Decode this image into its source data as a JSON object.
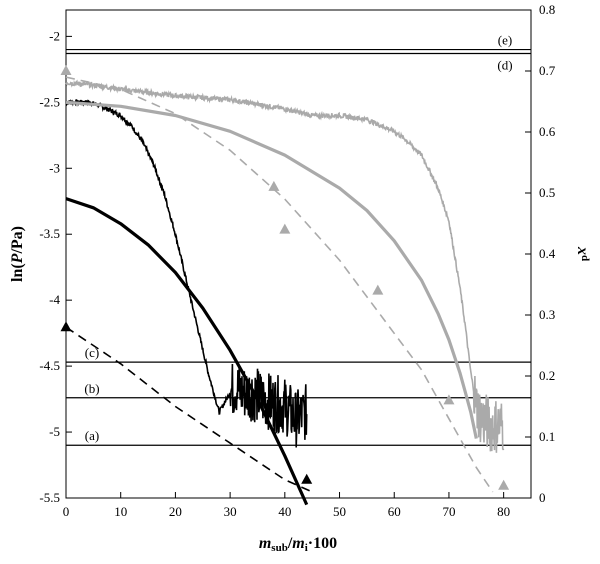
{
  "chart_data": {
    "type": "line",
    "x_axis": {
      "label_parts": [
        {
          "text": "m",
          "style": "italic"
        },
        {
          "text": "sub",
          "style": "subscript"
        },
        {
          "text": "/",
          "style": "normal"
        },
        {
          "text": "m",
          "style": "italic"
        },
        {
          "text": "i",
          "style": "subscript"
        },
        {
          "text": "·100",
          "style": "normal"
        }
      ],
      "range": [
        0,
        85
      ],
      "ticks": [
        0,
        10,
        20,
        30,
        40,
        50,
        60,
        70,
        80
      ],
      "tick_labels": [
        "0",
        "10",
        "20",
        "30",
        "40",
        "50",
        "60",
        "70",
        "80"
      ]
    },
    "y_left": {
      "label_parts": [
        {
          "text": "ln(",
          "style": "normal"
        },
        {
          "text": "P",
          "style": "italic"
        },
        {
          "text": "/Pa)",
          "style": "normal"
        }
      ],
      "range": [
        -5.5,
        -1.8
      ],
      "ticks": [
        -5.5,
        -5,
        -4.5,
        -4,
        -3.5,
        -3,
        -2.5,
        -2
      ],
      "tick_labels": [
        "-5.5",
        "-5",
        "-4.5",
        "-4",
        "-3.5",
        "-3",
        "-2.5",
        "-2"
      ]
    },
    "y_right": {
      "label_parts": [
        {
          "text": "x",
          "style": "italic"
        },
        {
          "text": "d",
          "style": "superscript"
        }
      ],
      "range": [
        0,
        0.8
      ],
      "ticks": [
        0,
        0.1,
        0.2,
        0.3,
        0.4,
        0.5,
        0.6,
        0.7,
        0.8
      ],
      "tick_labels": [
        "0",
        "0.1",
        "0.2",
        "0.3",
        "0.4",
        "0.5",
        "0.6",
        "0.7",
        "0.8"
      ]
    },
    "grid": false,
    "reference_lines": [
      {
        "label": "(a)",
        "y": -5.1
      },
      {
        "label": "(b)",
        "y": -4.74
      },
      {
        "label": "(c)",
        "y": -4.47
      },
      {
        "label": "(d)",
        "y": -2.13
      },
      {
        "label": "(e)",
        "y": -2.1
      }
    ],
    "series": [
      {
        "axis": "left",
        "style": "noisy-trace",
        "color": "#000000",
        "x": [
          0,
          2,
          4,
          6,
          8,
          10,
          12,
          14,
          16,
          18,
          20,
          22,
          24,
          26,
          28,
          30,
          31,
          32,
          34,
          36,
          38,
          40,
          42,
          44
        ],
        "y": [
          -2.5,
          -2.5,
          -2.5,
          -2.52,
          -2.56,
          -2.6,
          -2.68,
          -2.8,
          -2.97,
          -3.2,
          -3.5,
          -3.85,
          -4.2,
          -4.55,
          -4.85,
          -4.7,
          -4.65,
          -4.7,
          -4.7,
          -4.75,
          -4.78,
          -4.8,
          -4.9,
          -4.85
        ]
      },
      {
        "axis": "left",
        "style": "thick-line",
        "color": "#000000",
        "x": [
          0,
          5,
          10,
          15,
          20,
          25,
          30,
          35,
          40,
          44
        ],
        "y": [
          -3.23,
          -3.3,
          -3.42,
          -3.58,
          -3.79,
          -4.06,
          -4.38,
          -4.75,
          -5.18,
          -5.55
        ]
      },
      {
        "axis": "right",
        "style": "dashed-line",
        "color": "#000000",
        "x": [
          0,
          10,
          20,
          30,
          40,
          45
        ],
        "y": [
          0.28,
          0.22,
          0.15,
          0.09,
          0.03,
          0.01
        ]
      },
      {
        "axis": "right",
        "style": "markers",
        "marker": "triangle",
        "color": "#000000",
        "x": [
          0,
          44
        ],
        "y": [
          0.28,
          0.03
        ]
      },
      {
        "axis": "left",
        "style": "noisy-trace",
        "color": "#aaaaaa",
        "x": [
          0,
          5,
          10,
          20,
          30,
          40,
          45,
          50,
          55,
          60,
          62,
          65,
          68,
          70,
          72,
          73,
          74,
          75,
          76,
          77,
          78,
          80
        ],
        "y": [
          -2.35,
          -2.37,
          -2.4,
          -2.45,
          -2.48,
          -2.55,
          -2.6,
          -2.6,
          -2.63,
          -2.72,
          -2.78,
          -2.9,
          -3.15,
          -3.4,
          -3.9,
          -4.2,
          -4.55,
          -4.8,
          -4.9,
          -4.93,
          -4.95,
          -4.95
        ]
      },
      {
        "axis": "left",
        "style": "thick-line",
        "color": "#aaaaaa",
        "x": [
          0,
          10,
          20,
          30,
          40,
          50,
          55,
          60,
          65,
          68,
          70,
          72,
          73,
          74,
          75
        ],
        "y": [
          -2.5,
          -2.53,
          -2.6,
          -2.72,
          -2.9,
          -3.15,
          -3.32,
          -3.55,
          -3.85,
          -4.1,
          -4.3,
          -4.55,
          -4.7,
          -4.85,
          -5.05
        ]
      },
      {
        "axis": "right",
        "style": "dashed-line",
        "color": "#aaaaaa",
        "x": [
          0,
          10,
          20,
          30,
          40,
          50,
          60,
          65,
          70,
          75,
          78
        ],
        "y": [
          0.69,
          0.67,
          0.63,
          0.57,
          0.49,
          0.39,
          0.27,
          0.21,
          0.13,
          0.05,
          0.01
        ]
      },
      {
        "axis": "right",
        "style": "markers",
        "marker": "triangle",
        "color": "#aaaaaa",
        "x": [
          0,
          38,
          40,
          57,
          70,
          80
        ],
        "y": [
          0.7,
          0.51,
          0.44,
          0.34,
          0.16,
          0.02
        ]
      }
    ]
  }
}
